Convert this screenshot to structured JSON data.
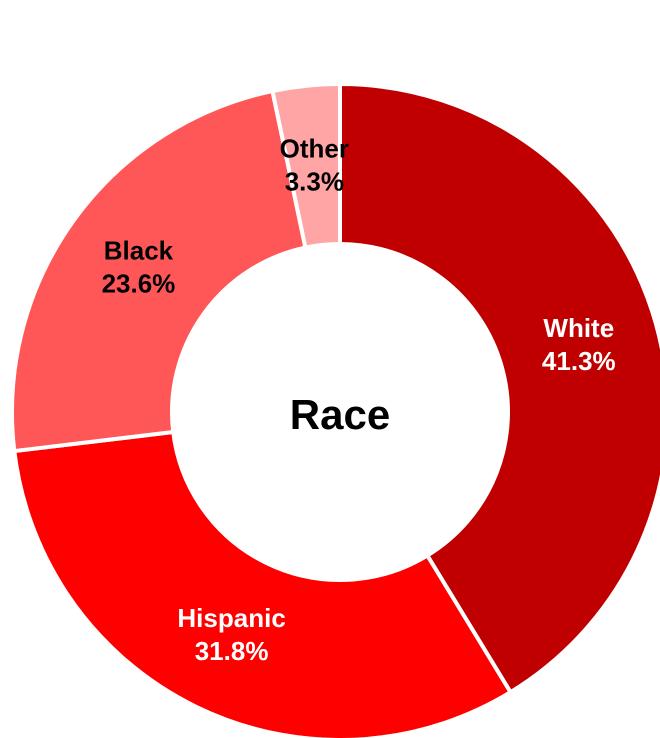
{
  "chart_data": {
    "type": "pie",
    "variant": "donut",
    "center_label": "Race",
    "categories": [
      "White",
      "Hispanic",
      "Black",
      "Other"
    ],
    "values": [
      41.3,
      31.8,
      23.6,
      3.3
    ],
    "value_labels": [
      "41.3%",
      "31.8%",
      "23.6%",
      "3.3%"
    ],
    "colors": [
      "#c00000",
      "#ff0000",
      "#ff5757",
      "#ffa5a5"
    ],
    "label_colors": [
      "#ffffff",
      "#ffffff",
      "#000000",
      "#000000"
    ],
    "start_angle_deg": 0,
    "direction": "clockwise",
    "legend": "none"
  }
}
